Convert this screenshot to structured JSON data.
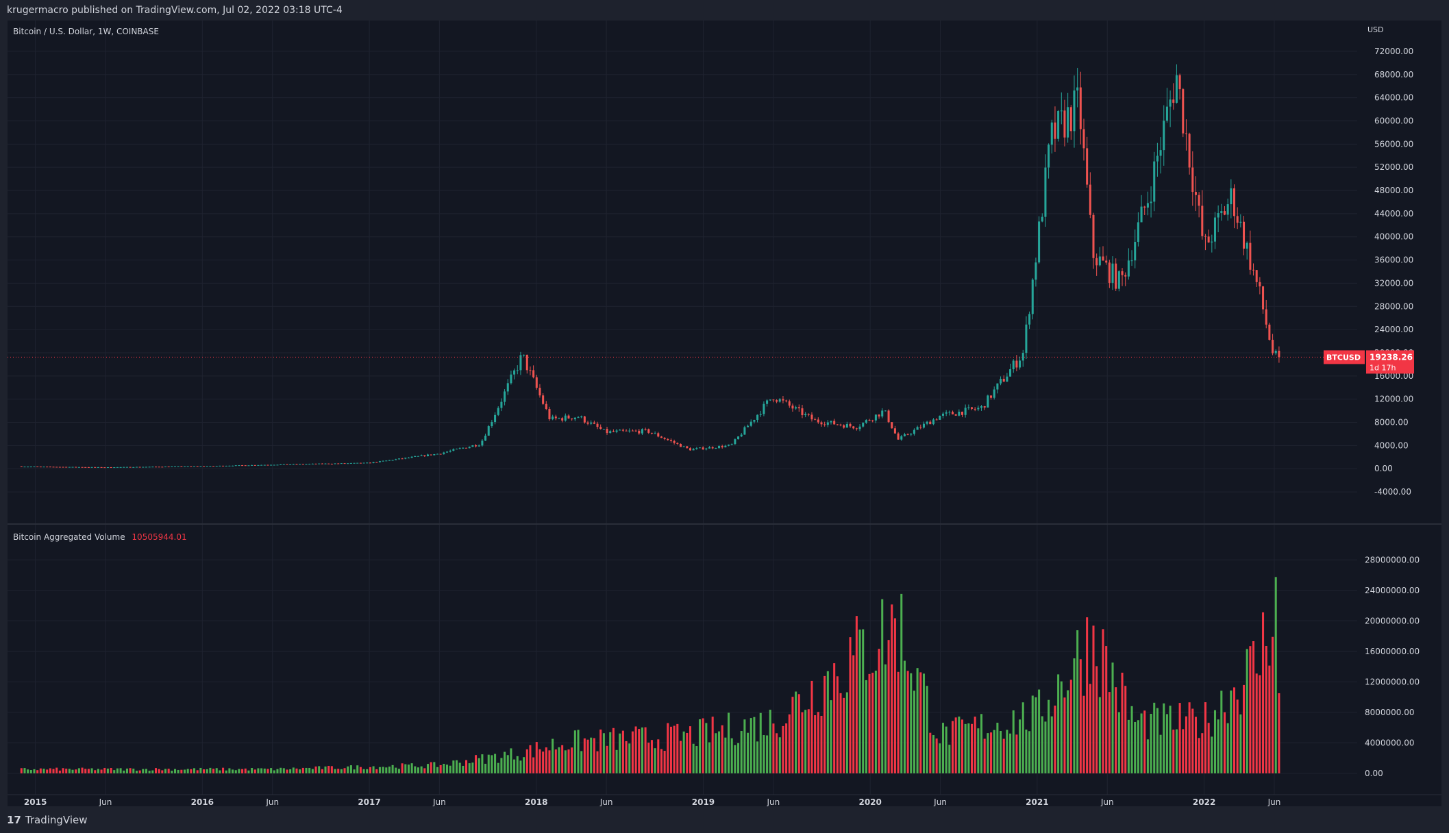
{
  "header": {
    "published_text": "krugermacro published on TradingView.com, Jul 02, 2022 03:18 UTC-4"
  },
  "footer": {
    "logo_glyph": "17",
    "brand": "TradingView"
  },
  "price_pane": {
    "symbol_title": "Bitcoin / U.S. Dollar, 1W, COINBASE",
    "currency": "USD",
    "current_tag_symbol": "BTCUSD",
    "current_price_text": "19238.26",
    "countdown_text": "1d 17h",
    "y_ticks": [
      "72000.00",
      "68000.00",
      "64000.00",
      "60000.00",
      "56000.00",
      "52000.00",
      "48000.00",
      "44000.00",
      "40000.00",
      "36000.00",
      "32000.00",
      "28000.00",
      "24000.00",
      "20000.00",
      "16000.00",
      "12000.00",
      "8000.00",
      "4000.00",
      "0.00",
      "-4000.00"
    ]
  },
  "volume_pane": {
    "title": "Bitcoin Aggregated Volume",
    "last_value_text": "10505944.01",
    "y_ticks": [
      "28000000.00",
      "24000000.00",
      "20000000.00",
      "16000000.00",
      "12000000.00",
      "8000000.00",
      "4000000.00",
      "0.00"
    ]
  },
  "time_axis": {
    "labels": [
      {
        "t": 2015.0,
        "text": "2015",
        "bold": true
      },
      {
        "t": 2015.42,
        "text": "Jun",
        "bold": false
      },
      {
        "t": 2016.0,
        "text": "2016",
        "bold": true
      },
      {
        "t": 2016.42,
        "text": "Jun",
        "bold": false
      },
      {
        "t": 2017.0,
        "text": "2017",
        "bold": true
      },
      {
        "t": 2017.42,
        "text": "Jun",
        "bold": false
      },
      {
        "t": 2018.0,
        "text": "2018",
        "bold": true
      },
      {
        "t": 2018.42,
        "text": "Jun",
        "bold": false
      },
      {
        "t": 2019.0,
        "text": "2019",
        "bold": true
      },
      {
        "t": 2019.42,
        "text": "Jun",
        "bold": false
      },
      {
        "t": 2020.0,
        "text": "2020",
        "bold": true
      },
      {
        "t": 2020.42,
        "text": "Jun",
        "bold": false
      },
      {
        "t": 2021.0,
        "text": "2021",
        "bold": true
      },
      {
        "t": 2021.42,
        "text": "Jun",
        "bold": false
      },
      {
        "t": 2022.0,
        "text": "2022",
        "bold": true
      },
      {
        "t": 2022.42,
        "text": "Jun",
        "bold": false
      }
    ]
  },
  "colors": {
    "up": "#26a69a",
    "down": "#ef5350",
    "volume_up": "#4caf50",
    "volume_down": "#f23645",
    "background": "#131722",
    "grid": "#1f2330",
    "text": "#d1d4dc",
    "price_tag": "#f23645"
  },
  "chart_data": [
    {
      "type": "candlestick",
      "title": "Bitcoin / U.S. Dollar, 1W, COINBASE",
      "ylabel": "USD",
      "ylim": [
        -6000,
        74000
      ],
      "xlim": [
        "2014-11",
        "2022-12"
      ],
      "current_price": 19238.26,
      "anchors": [
        {
          "date": "2014-12",
          "close": 380
        },
        {
          "date": "2015-06",
          "close": 250
        },
        {
          "date": "2016-01",
          "close": 430
        },
        {
          "date": "2016-06",
          "close": 700
        },
        {
          "date": "2017-01",
          "close": 1000
        },
        {
          "date": "2017-06",
          "close": 2600
        },
        {
          "date": "2017-09",
          "close": 4300
        },
        {
          "date": "2017-12",
          "close": 19500
        },
        {
          "date": "2018-02",
          "close": 8500
        },
        {
          "date": "2018-04",
          "close": 9000
        },
        {
          "date": "2018-06",
          "close": 6300
        },
        {
          "date": "2018-09",
          "close": 6500
        },
        {
          "date": "2018-12",
          "close": 3300
        },
        {
          "date": "2019-03",
          "close": 4000
        },
        {
          "date": "2019-06",
          "close": 12500
        },
        {
          "date": "2019-09",
          "close": 8300
        },
        {
          "date": "2019-12",
          "close": 7200
        },
        {
          "date": "2020-02",
          "close": 10000
        },
        {
          "date": "2020-03",
          "close": 5000
        },
        {
          "date": "2020-06",
          "close": 9100
        },
        {
          "date": "2020-09",
          "close": 10500
        },
        {
          "date": "2020-12",
          "close": 20000
        },
        {
          "date": "2021-02",
          "close": 57000
        },
        {
          "date": "2021-04",
          "close": 63000
        },
        {
          "date": "2021-05",
          "close": 37000
        },
        {
          "date": "2021-07",
          "close": 32000
        },
        {
          "date": "2021-09",
          "close": 47000
        },
        {
          "date": "2021-11",
          "close": 68000
        },
        {
          "date": "2022-01",
          "close": 38000
        },
        {
          "date": "2022-03",
          "close": 47000
        },
        {
          "date": "2022-05",
          "close": 30000
        },
        {
          "date": "2022-06",
          "close": 19238
        }
      ]
    },
    {
      "type": "bar",
      "title": "Bitcoin Aggregated Volume",
      "ylim": [
        -1000000,
        30000000
      ],
      "last_value": 10505944.01,
      "anchors": [
        {
          "date": "2014-12",
          "value": 600000
        },
        {
          "date": "2016-06",
          "value": 600000
        },
        {
          "date": "2017-06",
          "value": 1200000
        },
        {
          "date": "2017-12",
          "value": 3000000
        },
        {
          "date": "2018-03",
          "value": 4500000
        },
        {
          "date": "2018-12",
          "value": 5500000
        },
        {
          "date": "2019-06",
          "value": 7500000
        },
        {
          "date": "2020-03",
          "value": 22000000
        },
        {
          "date": "2020-06",
          "value": 5500000
        },
        {
          "date": "2021-01",
          "value": 8500000
        },
        {
          "date": "2021-05",
          "value": 20000000
        },
        {
          "date": "2021-08",
          "value": 7500000
        },
        {
          "date": "2022-01",
          "value": 7500000
        },
        {
          "date": "2022-05",
          "value": 16500000
        },
        {
          "date": "2022-06",
          "value": 26000000
        }
      ]
    }
  ]
}
